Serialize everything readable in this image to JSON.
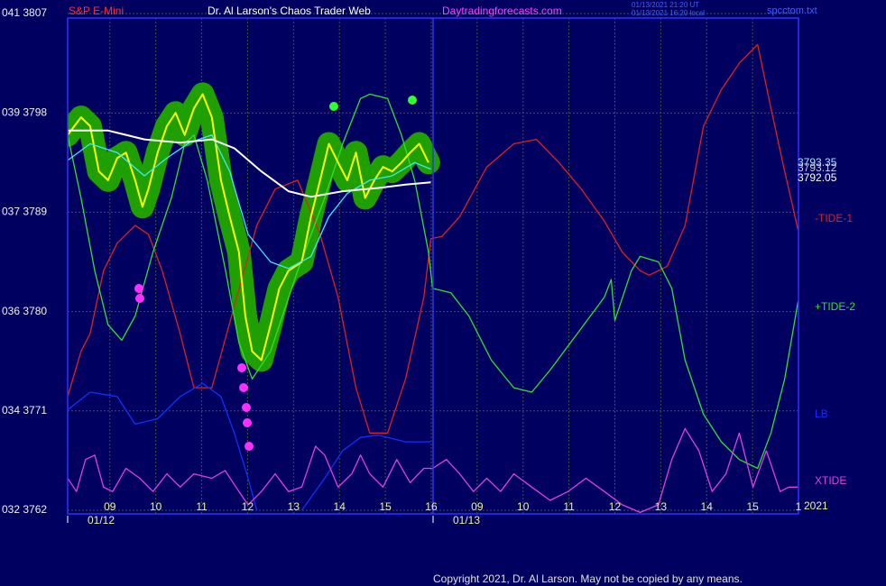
{
  "chart_data": {
    "type": "line",
    "title": "Dr. Al Larson's Chaos Trader Web",
    "xlim": [
      -0.92,
      15.0
    ],
    "ylim": [
      3762,
      3807
    ],
    "yticks": [
      {
        "value": 3807,
        "label": "041 3807"
      },
      {
        "value": 3798,
        "label": "039 3798"
      },
      {
        "value": 3789,
        "label": "037 3789"
      },
      {
        "value": 3780,
        "label": "036 3780"
      },
      {
        "value": 3771,
        "label": "034 3771"
      },
      {
        "value": 3762,
        "label": "032 3762"
      }
    ],
    "xticks": [
      {
        "value": 0,
        "label": "09"
      },
      {
        "value": 1,
        "label": "10"
      },
      {
        "value": 2,
        "label": "11"
      },
      {
        "value": 3,
        "label": "12"
      },
      {
        "value": 4,
        "label": "13"
      },
      {
        "value": 5,
        "label": "14"
      },
      {
        "value": 6,
        "label": "15"
      },
      {
        "value": 7,
        "label": "16"
      },
      {
        "value": 8,
        "label": "09"
      },
      {
        "value": 9,
        "label": "10"
      },
      {
        "value": 10,
        "label": "11"
      },
      {
        "value": 11,
        "label": "12"
      },
      {
        "value": 12,
        "label": "13"
      },
      {
        "value": 13,
        "label": "14"
      },
      {
        "value": 14,
        "label": "15"
      },
      {
        "value": 15,
        "label": "1"
      }
    ],
    "grid": true,
    "halo_color": "#1fa000",
    "series": [
      {
        "color": "#ffff00",
        "x": [
          -0.92,
          -0.63,
          -0.43,
          -0.24,
          -0.04,
          0.16,
          0.35,
          0.55,
          0.71,
          0.84,
          1.04,
          1.24,
          1.43,
          1.63,
          1.83,
          2.02,
          2.22,
          2.42,
          2.61,
          2.81,
          2.95,
          3.1,
          3.3,
          3.5,
          3.69,
          3.89,
          4.18,
          4.38,
          4.58,
          4.77,
          4.97,
          5.17,
          5.36,
          5.56,
          5.76,
          5.95,
          6.15,
          6.35,
          6.54,
          6.74,
          6.94
        ],
        "values": [
          3796.0,
          3797.6,
          3796.8,
          3792.7,
          3791.9,
          3793.9,
          3794.4,
          3791.9,
          3789.5,
          3791.1,
          3794.4,
          3796.8,
          3798.0,
          3796.0,
          3798.4,
          3799.7,
          3797.6,
          3791.9,
          3788.6,
          3785.4,
          3779.6,
          3776.4,
          3775.6,
          3778.8,
          3782.1,
          3783.7,
          3784.5,
          3788.6,
          3791.9,
          3795.2,
          3793.5,
          3791.9,
          3794.4,
          3790.3,
          3791.9,
          3793.1,
          3792.7,
          3793.5,
          3794.4,
          3795.2,
          3793.5
        ]
      },
      {
        "color": "#40e8ff",
        "x": [
          -0.92,
          -0.43,
          0.16,
          0.75,
          1.24,
          1.73,
          2.22,
          2.61,
          3.01,
          3.5,
          3.89,
          4.38,
          4.77,
          5.17,
          5.66,
          6.15,
          6.64,
          6.99
        ],
        "values": [
          3793.7,
          3795.2,
          3794.4,
          3792.3,
          3793.9,
          3795.3,
          3796.0,
          3792.7,
          3787.0,
          3784.5,
          3783.9,
          3785.0,
          3788.6,
          3790.7,
          3791.9,
          3792.3,
          3793.5,
          3792.9
        ]
      },
      {
        "color": "#ffffff",
        "x": [
          -0.92,
          -0.04,
          0.75,
          1.53,
          2.22,
          2.71,
          3.3,
          3.89,
          4.38,
          5.07,
          5.85,
          6.44,
          6.99
        ],
        "values": [
          3796.4,
          3796.4,
          3795.6,
          3795.3,
          3795.6,
          3794.8,
          3792.7,
          3790.9,
          3790.4,
          3790.9,
          3791.2,
          3791.5,
          3791.7
        ]
      },
      {
        "name": "-TIDE-1",
        "color": "#e02020",
        "x": [
          -0.92,
          -0.63,
          -0.43,
          -0.14,
          0.16,
          0.55,
          0.84,
          1.14,
          1.53,
          1.83,
          2.22,
          2.71,
          3.2,
          3.6,
          4.09,
          4.58,
          4.97,
          5.36,
          5.66,
          6.05,
          6.44,
          6.84,
          6.99,
          7.23,
          7.62,
          8.21,
          8.8,
          9.29,
          9.78,
          10.27,
          10.77,
          11.16,
          11.55,
          11.75,
          12.14,
          12.53,
          12.93,
          13.32,
          13.71,
          14.11,
          14.4,
          14.7,
          14.99
        ],
        "values": [
          3772.3,
          3776.4,
          3778.0,
          3783.7,
          3786.2,
          3787.8,
          3787.0,
          3783.7,
          3778.0,
          3773.1,
          3773.1,
          3780.5,
          3787.8,
          3791.1,
          3791.9,
          3787.0,
          3781.3,
          3773.1,
          3769.0,
          3769.0,
          3773.9,
          3781.3,
          3786.6,
          3786.8,
          3788.6,
          3793.1,
          3795.2,
          3795.6,
          3793.5,
          3791.1,
          3788.2,
          3785.4,
          3783.7,
          3783.3,
          3784.1,
          3787.8,
          3796.8,
          3800.1,
          3802.5,
          3804.2,
          3798.4,
          3792.7,
          3787.4
        ]
      },
      {
        "name": "+TIDE-2",
        "color": "#30e030",
        "x": [
          -0.92,
          -0.63,
          -0.33,
          -0.04,
          0.26,
          0.55,
          0.94,
          1.34,
          1.63,
          1.83,
          2.12,
          2.52,
          2.81,
          3.1,
          3.5,
          4.09,
          4.68,
          5.07,
          5.46,
          5.66,
          6.05,
          6.35,
          6.64,
          6.94,
          7.03,
          7.43,
          7.82,
          8.31,
          8.8,
          9.19,
          9.59,
          10.18,
          10.77,
          10.92,
          11.0,
          11.36,
          11.55,
          11.95,
          12.24,
          12.53,
          12.93,
          13.32,
          13.71,
          14.11,
          14.4,
          14.7,
          14.99
        ],
        "values": [
          3796.0,
          3790.3,
          3783.7,
          3778.8,
          3777.4,
          3779.6,
          3785.4,
          3790.3,
          3795.2,
          3796.0,
          3791.9,
          3783.7,
          3777.2,
          3773.9,
          3776.4,
          3783.7,
          3790.3,
          3795.2,
          3799.3,
          3799.7,
          3799.3,
          3796.0,
          3791.9,
          3785.4,
          3782.1,
          3781.7,
          3779.6,
          3775.6,
          3773.1,
          3772.7,
          3774.7,
          3778.0,
          3781.3,
          3782.9,
          3779.2,
          3783.7,
          3785.0,
          3784.5,
          3782.1,
          3775.6,
          3770.7,
          3768.2,
          3766.6,
          3765.8,
          3769.0,
          3773.9,
          3780.9
        ]
      },
      {
        "name": "LB",
        "color": "#1030ff",
        "x": [
          -0.92,
          -0.43,
          0.16,
          0.55,
          1.04,
          1.53,
          2.02,
          2.42,
          2.71,
          3.01,
          3.2,
          3.69,
          4.18,
          4.68,
          5.07,
          5.46,
          5.85,
          6.44,
          6.99
        ],
        "values": [
          3771.1,
          3772.7,
          3772.3,
          3769.8,
          3770.3,
          3772.3,
          3773.5,
          3772.3,
          3769.0,
          3764.9,
          3762.0,
          null,
          3762.0,
          3764.9,
          3767.4,
          3768.6,
          3768.8,
          3768.2,
          3768.2
        ]
      },
      {
        "name": "XTIDE",
        "color": "#e040e0",
        "x": [
          -0.92,
          -0.73,
          -0.53,
          -0.33,
          -0.14,
          0.06,
          0.35,
          0.65,
          0.94,
          1.24,
          1.53,
          1.83,
          2.22,
          2.51,
          2.81,
          3.01,
          3.3,
          3.6,
          3.89,
          4.18,
          4.48,
          4.68,
          4.97,
          5.27,
          5.46,
          5.66,
          5.95,
          6.25,
          6.54,
          6.84,
          7.03,
          7.33,
          7.62,
          7.92,
          8.21,
          8.51,
          8.8,
          9.19,
          9.59,
          9.98,
          10.37,
          10.77,
          11.16,
          11.55,
          11.95,
          12.24,
          12.53,
          12.83,
          13.12,
          13.42,
          13.71,
          14.01,
          14.3,
          14.6,
          14.79,
          14.99
        ],
        "values": [
          3764.9,
          3763.7,
          3766.6,
          3767.0,
          3764.1,
          3763.7,
          3765.8,
          3764.9,
          3763.7,
          3765.3,
          3764.1,
          3765.3,
          3764.9,
          3765.6,
          3763.7,
          3762.5,
          3763.7,
          3765.3,
          3763.7,
          3764.1,
          3767.8,
          3767.0,
          3764.1,
          3765.3,
          3767.0,
          3765.3,
          3764.1,
          3766.6,
          3764.5,
          3765.8,
          3765.8,
          3766.6,
          3765.3,
          3763.7,
          3764.9,
          3763.7,
          3765.3,
          3764.1,
          3762.9,
          3763.7,
          3764.9,
          3763.7,
          3762.5,
          3761.8,
          3762.5,
          3766.6,
          3769.4,
          3767.4,
          3763.7,
          3765.3,
          3769.0,
          3764.1,
          3767.4,
          3763.7,
          3764.1,
          3764.1
        ]
      }
    ],
    "annotations": [
      {
        "text": "S&P E-Mini",
        "color": "#ff3030"
      },
      {
        "text": "Daytradingforecasts.com",
        "color": "#ff40ff"
      },
      {
        "text": "01/13/2021 21:20 UT",
        "color": "#4060ff"
      },
      {
        "text": "01/13/2021 16:20 local",
        "color": "#4060ff"
      },
      {
        "text": "spcctom.txt",
        "color": "#4060ff"
      },
      {
        "text": "3793.35",
        "color": "#a0e8ff"
      },
      {
        "text": "3793.12",
        "color": "#d0d0d0"
      },
      {
        "text": "3792.05",
        "color": "#ffffff"
      },
      {
        "text": "01/12",
        "color": "#f0f0a0"
      },
      {
        "text": "01/13",
        "color": "#f0f0a0"
      },
      {
        "text": "2021",
        "color": "#f0f0a0"
      },
      {
        "text": "Copyright 2021, Dr. Al Larson. May not be copied by any means.",
        "color": "#e0e0e0"
      }
    ]
  }
}
